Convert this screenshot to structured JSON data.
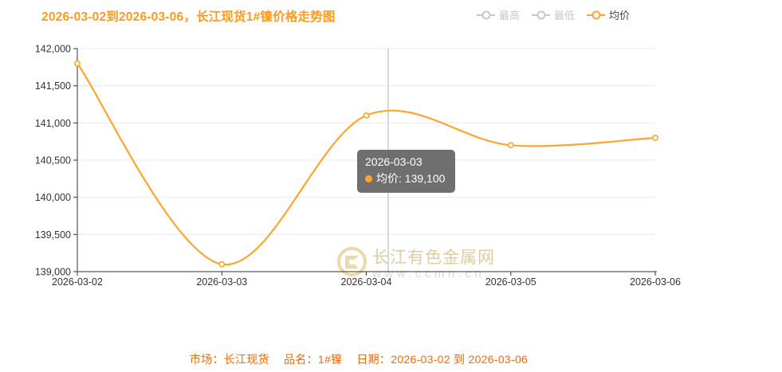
{
  "title": "2026-03-02到2026-03-06，长江现货1#镍价格走势图",
  "legend": {
    "items": [
      {
        "label": "最高",
        "active": false
      },
      {
        "label": "最低",
        "active": false
      },
      {
        "label": "均价",
        "active": true
      }
    ]
  },
  "colors": {
    "accent": "#ffa42e",
    "title_color": "#ff9a1e",
    "caption_color": "#ff6600",
    "legend_inactive": "#c7c7c7",
    "axis": "#333333",
    "grid": "#e8e8e8",
    "crosshair": "#cccccc",
    "tooltip_bg": "#6f6f6f"
  },
  "chart_data": {
    "type": "line",
    "title": "2026-03-02到2026-03-06，长江现货1#镍价格走势图",
    "categories": [
      "2026-03-02",
      "2026-03-03",
      "2026-03-04",
      "2026-03-05",
      "2026-03-06"
    ],
    "series": [
      {
        "name": "均价",
        "values": [
          141800,
          139100,
          141100,
          140700,
          140800
        ]
      }
    ],
    "hidden_series": [
      "最高",
      "最低"
    ],
    "xlabel": "",
    "ylabel": "",
    "ylim": [
      139000,
      142000
    ],
    "ytick_step": 500,
    "y_tick_labels": [
      "142,000",
      "141,500",
      "141,000",
      "140,500",
      "140,000",
      "139,500",
      "139,000"
    ],
    "smooth": true,
    "grid": true,
    "legend_position": "top-right"
  },
  "tooltip": {
    "title": "2026-03-03",
    "series": "均价",
    "value_line": "均价: 139,100",
    "value": "139,100"
  },
  "watermark": {
    "site_name": "长江有色金属网",
    "site_url": "www.ccmn.cn"
  },
  "caption": {
    "market": "市场：长江现货",
    "product": "品名：1#镍",
    "date": "日期：2026-03-02 到 2026-03-06"
  }
}
